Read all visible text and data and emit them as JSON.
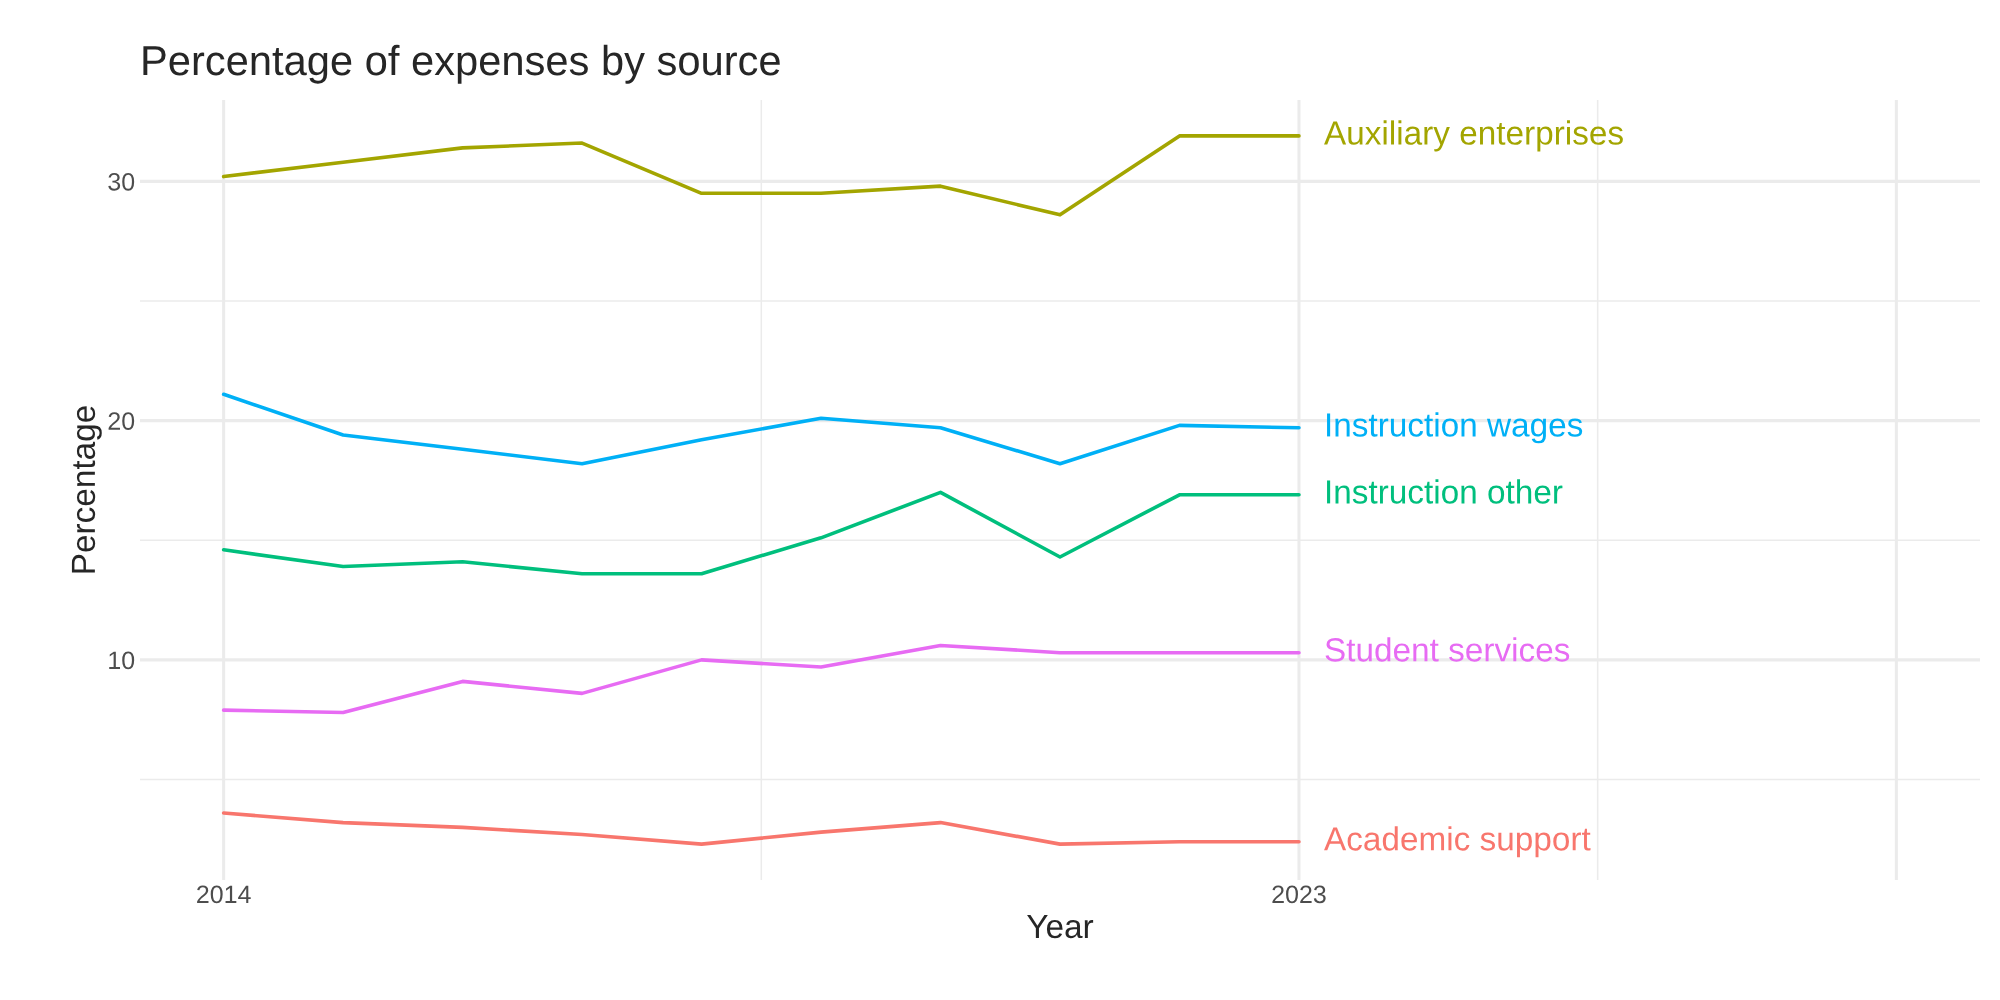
{
  "chart_data": {
    "type": "line",
    "title": "Percentage of expenses by source",
    "xlabel": "Year",
    "ylabel": "Percentage",
    "x": [
      2014,
      2015,
      2016,
      2017,
      2018,
      2019,
      2020,
      2021,
      2022,
      2023
    ],
    "series": [
      {
        "name": "Auxiliary enterprises",
        "color": "#a3a500",
        "values": [
          30.2,
          30.8,
          31.4,
          31.6,
          29.5,
          29.5,
          29.8,
          28.6,
          31.9,
          31.9
        ]
      },
      {
        "name": "Instruction wages",
        "color": "#00b0f6",
        "values": [
          21.1,
          19.4,
          18.8,
          18.2,
          19.2,
          20.1,
          19.7,
          18.2,
          19.8,
          19.7
        ]
      },
      {
        "name": "Instruction other",
        "color": "#00bf7d",
        "values": [
          14.6,
          13.9,
          14.1,
          13.6,
          13.6,
          15.1,
          17.0,
          14.3,
          16.9,
          16.9
        ]
      },
      {
        "name": "Student services",
        "color": "#e76bf3",
        "values": [
          7.9,
          7.8,
          9.1,
          8.6,
          10.0,
          9.7,
          10.6,
          10.3,
          10.3,
          10.3
        ]
      },
      {
        "name": "Academic support",
        "color": "#f8766d",
        "values": [
          3.6,
          3.2,
          3.0,
          2.7,
          2.3,
          2.8,
          3.2,
          2.3,
          2.4,
          2.4
        ]
      }
    ],
    "xlim": [
      2013.3,
      2028.7
    ],
    "xticks": [
      2014,
      2023,
      {
        "value": 2028,
        "label": null
      }
    ],
    "ylim": [
      0.8,
      33.4
    ],
    "yticks": [
      10,
      20,
      30
    ],
    "grid": true,
    "legend": false,
    "line_style": "solid",
    "marker": "none"
  }
}
